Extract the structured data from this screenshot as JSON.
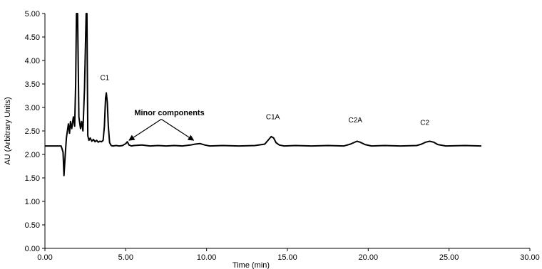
{
  "chart_data": {
    "type": "line",
    "xlabel": "Time (min)",
    "ylabel": "AU (Arbitrary Units)",
    "xlim": [
      0,
      30
    ],
    "ylim": [
      0,
      5
    ],
    "x_ticks": [
      "0.00",
      "5.00",
      "10.00",
      "15.00",
      "20.00",
      "25.00",
      "30.00"
    ],
    "y_ticks": [
      "0.00",
      "0.50",
      "1.00",
      "1.50",
      "2.00",
      "2.50",
      "3.00",
      "3.50",
      "4.00",
      "4.50",
      "5.00"
    ],
    "grid": false,
    "series": [
      {
        "color": "#000000",
        "x": [
          0,
          1.0,
          1.12,
          1.18,
          1.25,
          1.33,
          1.45,
          1.52,
          1.58,
          1.66,
          1.76,
          1.84,
          1.9,
          1.95,
          2.02,
          2.1,
          2.2,
          2.27,
          2.35,
          2.45,
          2.55,
          2.6,
          2.65,
          2.72,
          2.8,
          2.9,
          3.0,
          3.1,
          3.2,
          3.3,
          3.4,
          3.5,
          3.6,
          3.68,
          3.75,
          3.8,
          3.86,
          3.92,
          4.0,
          4.1,
          4.2,
          4.4,
          4.6,
          4.8,
          5.0,
          5.1,
          5.2,
          5.35,
          5.5,
          6.0,
          6.5,
          7.0,
          7.5,
          8.0,
          8.5,
          9.0,
          9.3,
          9.6,
          9.9,
          10.2,
          11.0,
          12.0,
          13.0,
          13.6,
          13.85,
          14.0,
          14.15,
          14.3,
          14.5,
          14.8,
          15.5,
          16.5,
          17.5,
          18.5,
          18.9,
          19.1,
          19.3,
          19.5,
          19.8,
          20.2,
          21.0,
          22.0,
          23.0,
          23.3,
          23.55,
          23.8,
          24.05,
          24.3,
          24.8,
          26.0,
          27.0
        ],
        "y": [
          2.18,
          2.18,
          2.05,
          1.55,
          1.95,
          2.35,
          2.65,
          2.45,
          2.7,
          2.55,
          2.8,
          2.6,
          3.5,
          5.0,
          5.0,
          2.8,
          2.55,
          2.7,
          2.5,
          3.4,
          5.0,
          5.0,
          2.4,
          2.3,
          2.35,
          2.28,
          2.32,
          2.27,
          2.3,
          2.26,
          2.28,
          2.27,
          2.3,
          2.6,
          3.2,
          3.31,
          3.1,
          2.6,
          2.25,
          2.19,
          2.18,
          2.19,
          2.18,
          2.19,
          2.23,
          2.27,
          2.2,
          2.18,
          2.19,
          2.2,
          2.18,
          2.19,
          2.18,
          2.19,
          2.18,
          2.2,
          2.22,
          2.23,
          2.2,
          2.18,
          2.19,
          2.18,
          2.19,
          2.22,
          2.32,
          2.38,
          2.35,
          2.25,
          2.2,
          2.18,
          2.19,
          2.18,
          2.19,
          2.18,
          2.22,
          2.25,
          2.28,
          2.26,
          2.21,
          2.18,
          2.19,
          2.18,
          2.19,
          2.22,
          2.26,
          2.28,
          2.26,
          2.21,
          2.18,
          2.19,
          2.18
        ]
      }
    ],
    "annotations": [
      {
        "text": "C1",
        "x": 3.7,
        "y": 3.58
      },
      {
        "text": "Minor components",
        "x": 7.7,
        "y": 2.83
      },
      {
        "text": "C1A",
        "x": 14.1,
        "y": 2.75
      },
      {
        "text": "C2A",
        "x": 19.2,
        "y": 2.68
      },
      {
        "text": "C2",
        "x": 23.5,
        "y": 2.63
      }
    ],
    "arrows": [
      {
        "from": [
          7.2,
          2.75
        ],
        "to": [
          5.2,
          2.3
        ]
      },
      {
        "from": [
          7.2,
          2.75
        ],
        "to": [
          9.2,
          2.3
        ]
      }
    ]
  }
}
